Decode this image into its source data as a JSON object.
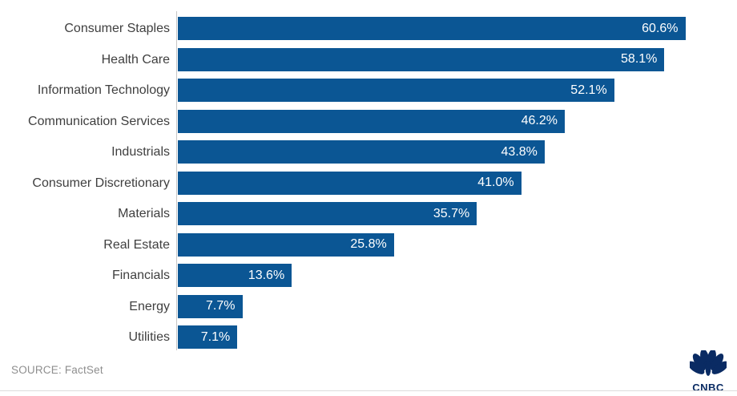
{
  "chart_data": {
    "type": "bar",
    "orientation": "horizontal",
    "title": "",
    "categories": [
      "Consumer Staples",
      "Health Care",
      "Information Technology",
      "Communication Services",
      "Industrials",
      "Consumer Discretionary",
      "Materials",
      "Real Estate",
      "Financials",
      "Energy",
      "Utilities"
    ],
    "values": [
      60.6,
      58.1,
      52.1,
      46.2,
      43.8,
      41.0,
      35.7,
      25.8,
      13.6,
      7.7,
      7.1
    ],
    "value_labels": [
      "60.6%",
      "58.1%",
      "52.1%",
      "46.2%",
      "43.8%",
      "41.0%",
      "35.7%",
      "25.8%",
      "13.6%",
      "7.7%",
      "7.1%"
    ],
    "xlim": [
      0,
      66
    ],
    "grid": false,
    "legend": null,
    "bar_color": "#0b5694",
    "value_label_color": "#ffffff",
    "category_label_color": "#3f3f3f",
    "axis_line_color": "#c6c6c6"
  },
  "footer": {
    "source": "SOURCE: FactSet",
    "logo_text": "CNBC",
    "logo_color": "#0a2b63"
  }
}
